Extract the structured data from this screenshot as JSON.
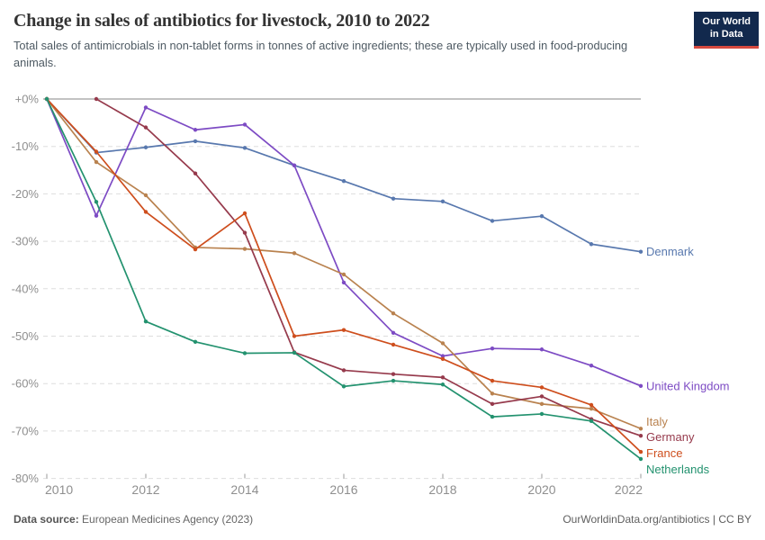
{
  "header": {
    "logo": {
      "line1": "Our World",
      "line2": "in Data"
    }
  },
  "footer": {
    "source_label": "Data source:",
    "source_value": "European Medicines Agency (2023)",
    "link": "OurWorldinData.org/antibiotics",
    "separator": " | ",
    "license": "CC BY"
  },
  "chart_data": {
    "type": "line",
    "title": "Change in sales of antibiotics for livestock, 2010 to 2022",
    "subtitle": "Total sales of antimicrobials in non-tablet forms in tonnes of active ingredients; these are typically used in food-producing animals.",
    "unit": "%",
    "xlim": [
      2010,
      2022
    ],
    "ylim": [
      -80,
      0
    ],
    "grid": true,
    "legend_position": "end-of-line labels",
    "x_ticks": [
      "2010",
      "2012",
      "2014",
      "2016",
      "2018",
      "2020",
      "2022"
    ],
    "y_ticks": [
      {
        "value": 0,
        "label": "+0%"
      },
      {
        "value": -10,
        "label": "-10%"
      },
      {
        "value": -20,
        "label": "-20%"
      },
      {
        "value": -30,
        "label": "-30%"
      },
      {
        "value": -40,
        "label": "-40%"
      },
      {
        "value": -50,
        "label": "-50%"
      },
      {
        "value": -60,
        "label": "-60%"
      },
      {
        "value": -70,
        "label": "-70%"
      },
      {
        "value": -80,
        "label": "-80%"
      }
    ],
    "x": [
      2010,
      2011,
      2012,
      2013,
      2014,
      2015,
      2016,
      2017,
      2018,
      2019,
      2020,
      2021,
      2022
    ],
    "series": [
      {
        "name": "Denmark",
        "color": "#5878ae",
        "start_year": 2010,
        "values": [
          0,
          -11.3,
          -10.2,
          -8.9,
          -10.3,
          -14.0,
          -17.3,
          -21.0,
          -21.6,
          -25.7,
          -24.7,
          -30.6,
          -32.2
        ]
      },
      {
        "name": "United Kingdom",
        "color": "#7d4bc4",
        "start_year": 2010,
        "values": [
          0,
          -24.6,
          -1.8,
          -6.5,
          -5.4,
          -14.0,
          -38.7,
          -49.3,
          -54.2,
          -52.6,
          -52.8,
          -56.2,
          -60.5
        ]
      },
      {
        "name": "Italy",
        "color": "#b9824f",
        "start_year": 2010,
        "values": [
          0,
          -13.3,
          -20.3,
          -31.3,
          -31.6,
          -32.5,
          -37.0,
          -45.2,
          -51.5,
          -62.1,
          -64.3,
          -65.3,
          -69.5
        ]
      },
      {
        "name": "Germany",
        "color": "#963a4c",
        "start_year": 2011,
        "values": [
          0,
          -6.0,
          -15.7,
          -28.2,
          -53.4,
          -57.2,
          -58.0,
          -58.7,
          -64.3,
          -62.7,
          -67.5,
          -71.0
        ]
      },
      {
        "name": "France",
        "color": "#ce4e1d",
        "start_year": 2010,
        "values": [
          0,
          -11.1,
          -23.8,
          -31.7,
          -24.1,
          -50.0,
          -48.7,
          -51.8,
          -54.8,
          -59.4,
          -60.8,
          -64.5,
          -74.4
        ]
      },
      {
        "name": "Netherlands",
        "color": "#23926f",
        "start_year": 2010,
        "values": [
          0,
          -21.7,
          -46.9,
          -51.2,
          -53.6,
          -53.5,
          -60.6,
          -59.4,
          -60.2,
          -67.0,
          -66.4,
          -67.9,
          -75.9
        ]
      }
    ]
  },
  "colors": {
    "zero_line": "#b9b9b9",
    "gridline": "#dddddd",
    "axis_text": "#8f8f8f",
    "logo_bg": "#12294d",
    "logo_accent": "#d6493f"
  }
}
